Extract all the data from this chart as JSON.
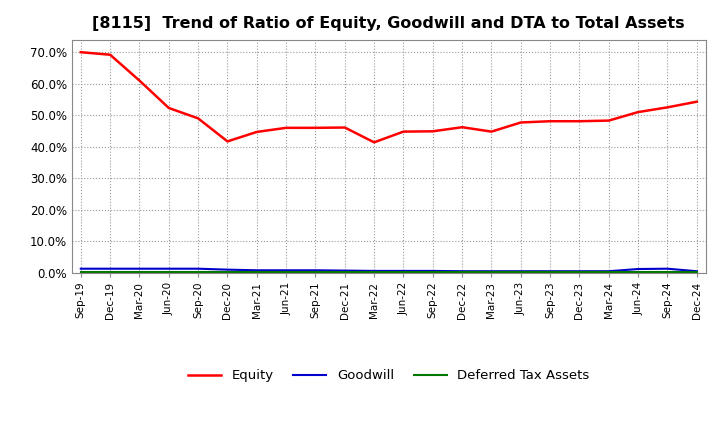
{
  "title": "[8115]  Trend of Ratio of Equity, Goodwill and DTA to Total Assets",
  "x_labels": [
    "Sep-19",
    "Dec-19",
    "Mar-20",
    "Jun-20",
    "Sep-20",
    "Dec-20",
    "Mar-21",
    "Jun-21",
    "Sep-21",
    "Dec-21",
    "Mar-22",
    "Jun-22",
    "Sep-22",
    "Dec-22",
    "Mar-23",
    "Jun-23",
    "Sep-23",
    "Dec-23",
    "Mar-24",
    "Jun-24",
    "Sep-24",
    "Dec-24"
  ],
  "equity": [
    0.7,
    0.692,
    0.61,
    0.523,
    0.49,
    0.417,
    0.447,
    0.46,
    0.46,
    0.461,
    0.414,
    0.448,
    0.449,
    0.462,
    0.448,
    0.477,
    0.481,
    0.481,
    0.483,
    0.51,
    0.525,
    0.543
  ],
  "goodwill": [
    0.013,
    0.013,
    0.013,
    0.013,
    0.013,
    0.01,
    0.008,
    0.008,
    0.008,
    0.007,
    0.006,
    0.006,
    0.006,
    0.005,
    0.005,
    0.005,
    0.005,
    0.005,
    0.005,
    0.012,
    0.013,
    0.005
  ],
  "dta": [
    0.003,
    0.003,
    0.003,
    0.003,
    0.003,
    0.003,
    0.003,
    0.003,
    0.003,
    0.003,
    0.003,
    0.003,
    0.003,
    0.003,
    0.003,
    0.003,
    0.003,
    0.003,
    0.003,
    0.003,
    0.003,
    0.003
  ],
  "equity_color": "#ff0000",
  "goodwill_color": "#0000cc",
  "dta_color": "#007700",
  "ylim": [
    0.0,
    0.74
  ],
  "yticks": [
    0.0,
    0.1,
    0.2,
    0.3,
    0.4,
    0.5,
    0.6,
    0.7
  ],
  "ytick_labels": [
    "0.0%",
    "10.0%",
    "20.0%",
    "30.0%",
    "40.0%",
    "50.0%",
    "60.0%",
    "70.0%"
  ],
  "bg_color": "#ffffff",
  "plot_bg_color": "#ffffff",
  "grid_color": "#999999",
  "title_fontsize": 11.5,
  "legend_labels": [
    "Equity",
    "Goodwill",
    "Deferred Tax Assets"
  ]
}
